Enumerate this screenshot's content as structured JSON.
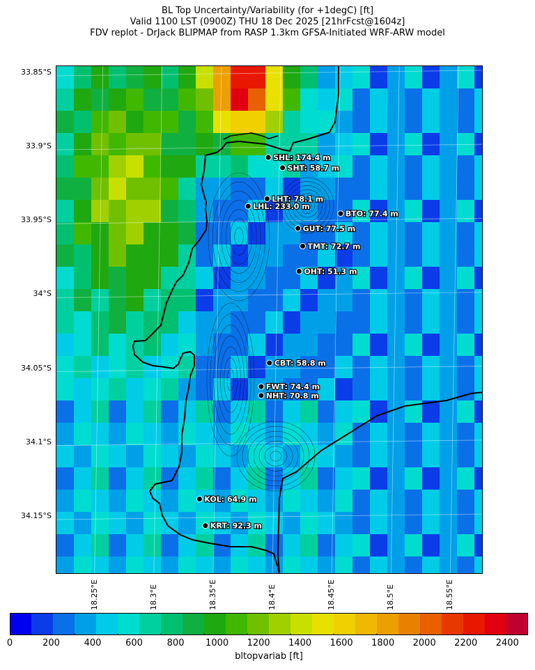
{
  "titles": [
    "BL Top Uncertainty/Variability (for +1degC) [ft]",
    "Valid 1100 LST (0900Z) THU 18 Dec 2025 [21hrFcst@1604z]",
    "FDV replot - DrJack BLIPMAP from RASP 1.3km GFSA-Initiated WRF-ARW model"
  ],
  "lat_labels": [
    "33.85°S",
    "33.9°S",
    "33.95°S",
    "34°S",
    "34.05°S",
    "34.1°S",
    "34.15°S"
  ],
  "lon_labels": [
    "18.25°E",
    "18.3°E",
    "18.35°E",
    "18.4°E",
    "18.45°E",
    "18.5°E",
    "18.55°E"
  ],
  "colorbar": {
    "label": "bltopvariab [ft]",
    "ticks": [
      "0",
      "200",
      "400",
      "600",
      "800",
      "1000",
      "1200",
      "1400",
      "1600",
      "1800",
      "2000",
      "2200",
      "2400"
    ],
    "min": 0,
    "max": 2500,
    "step": 100,
    "colors": [
      "#0000f0",
      "#0a3de8",
      "#0a70e8",
      "#00a0e8",
      "#00cce8",
      "#00dcd0",
      "#00d0a0",
      "#00c070",
      "#10b040",
      "#20a810",
      "#40b800",
      "#70c000",
      "#a0d000",
      "#c8e000",
      "#e8e000",
      "#f0d000",
      "#f0b800",
      "#eca000",
      "#ea8000",
      "#e86000",
      "#e83800",
      "#e81800",
      "#e00010",
      "#c00030"
    ]
  },
  "stations": [
    {
      "name": "SHL",
      "label": "SHL: 174.4 m",
      "lon": 18.393,
      "lat": -33.907
    },
    {
      "name": "SHT",
      "label": "SHT: 58.7 m",
      "lon": 18.405,
      "lat": -33.914
    },
    {
      "name": "LHT",
      "label": "LHT: 78.1 m",
      "lon": 18.392,
      "lat": -33.935
    },
    {
      "name": "LHL",
      "label": "LHL: 233.0 m",
      "lon": 18.376,
      "lat": -33.94
    },
    {
      "name": "BTO",
      "label": "BTO: 77.4 m",
      "lon": 18.454,
      "lat": -33.945
    },
    {
      "name": "GUT",
      "label": "GUT: 77.5 m",
      "lon": 18.418,
      "lat": -33.955
    },
    {
      "name": "TMT",
      "label": "TMT: 72.7 m",
      "lon": 18.422,
      "lat": -33.967
    },
    {
      "name": "OHT",
      "label": "OHT: 51.3 m",
      "lon": 18.419,
      "lat": -33.984
    },
    {
      "name": "CBT",
      "label": "CBT: 58.8 m",
      "lon": 18.394,
      "lat": -34.046
    },
    {
      "name": "FWT",
      "label": "FWT: 74.4 m",
      "lon": 18.387,
      "lat": -34.062
    },
    {
      "name": "NHT",
      "label": "NHT: 70.8 m",
      "lon": 18.387,
      "lat": -34.068
    },
    {
      "name": "KOL",
      "label": "KOL: 64.9 m",
      "lon": 18.335,
      "lat": -34.138
    },
    {
      "name": "KRT",
      "label": "KRT: 92.3 m",
      "lon": 18.34,
      "lat": -34.156
    }
  ]
}
